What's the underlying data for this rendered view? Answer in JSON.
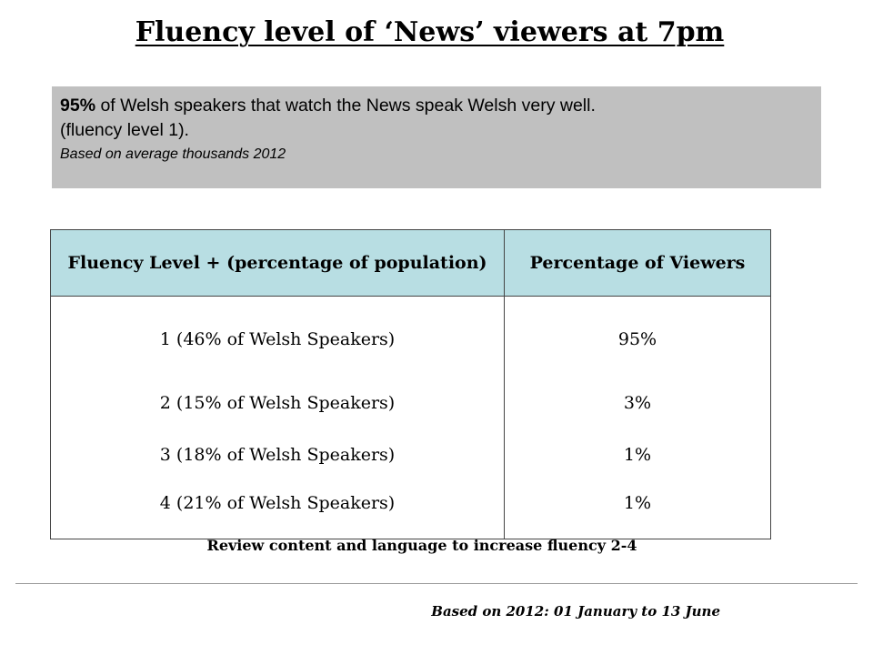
{
  "title": "Fluency level of ‘News’ viewers at 7pm",
  "summary": {
    "highlight": "95%",
    "text_line1": " of Welsh speakers that watch the News speak Welsh very well.",
    "text_line2": "(fluency level 1).",
    "basis": "Based on average thousands 2012",
    "background_color": "#c0c0c0"
  },
  "table": {
    "header_color": "#b8dee3",
    "columns": [
      "Fluency Level + (percentage of population)",
      "Percentage of Viewers"
    ],
    "rows": [
      {
        "level": "1 (46% of Welsh Speakers)",
        "percentage": "95%"
      },
      {
        "level": "2 (15% of Welsh Speakers)",
        "percentage": "3%"
      },
      {
        "level": "3 (18% of Welsh Speakers)",
        "percentage": "1%"
      },
      {
        "level": "4 (21% of Welsh Speakers)",
        "percentage": "1%"
      }
    ]
  },
  "review_note": "Review content and language to increase fluency 2-4",
  "footer_note": "Based on 2012: 01 January to 13 June"
}
